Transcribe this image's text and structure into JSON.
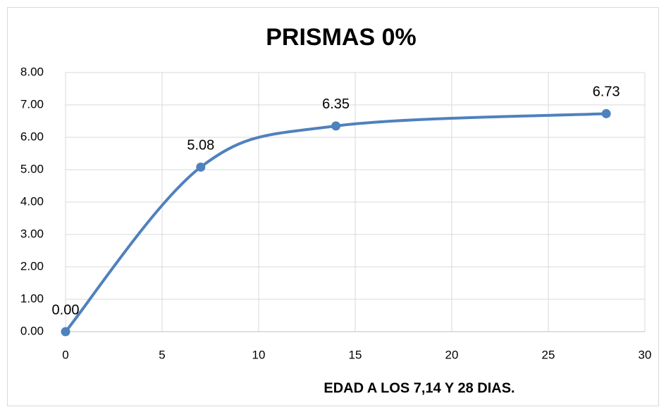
{
  "chart_data": {
    "type": "scatter",
    "title": "PRISMAS 0%",
    "x_label": "EDAD A LOS 7,14 Y 28 DIAS.",
    "x": [
      0,
      7,
      14,
      28
    ],
    "values": [
      0,
      5.08,
      6.35,
      6.73
    ],
    "value_labels": [
      "0.00",
      "5.08",
      "6.35",
      "6.73"
    ],
    "color": "#4f81bd",
    "smooth": true,
    "grid": true,
    "xlim": [
      0,
      30
    ],
    "xticks": [
      0,
      5,
      10,
      15,
      20,
      25,
      30
    ],
    "ylim": [
      0,
      8
    ],
    "yticks": [
      {
        "value": 0,
        "label": "0.00"
      },
      {
        "value": 1,
        "label": "1.00"
      },
      {
        "value": 2,
        "label": "2.00"
      },
      {
        "value": 3,
        "label": "3.00"
      },
      {
        "value": 4,
        "label": "4.00"
      },
      {
        "value": 5,
        "label": "5.00"
      },
      {
        "value": 6,
        "label": "6.00"
      },
      {
        "value": 7,
        "label": "7.00"
      },
      {
        "value": 8,
        "label": "8.00"
      }
    ]
  }
}
